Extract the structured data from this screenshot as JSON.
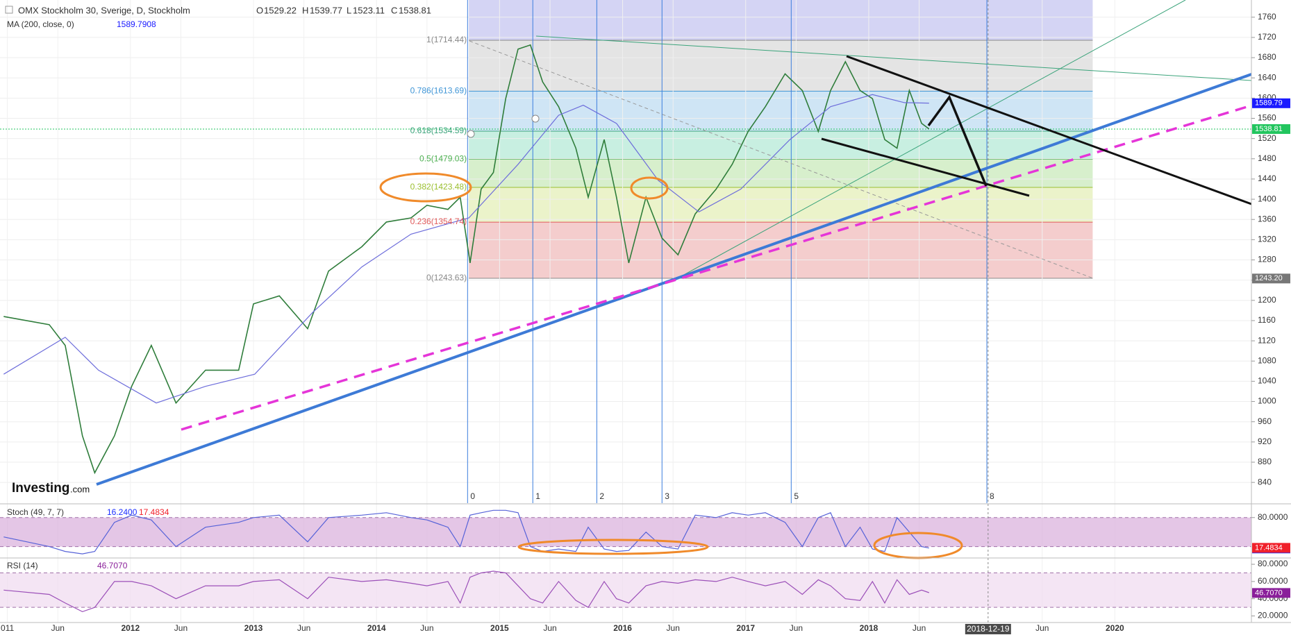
{
  "chart_data": [
    {
      "type": "line",
      "title": "OMX Stockholm 30, Sverige, D, Stockholm",
      "ohlc_labels": [
        "O",
        "H",
        "L",
        "C"
      ],
      "ohlc": [
        1529.22,
        1539.77,
        1523.11,
        1538.81
      ],
      "logo": "Investing",
      "logo_suffix": ".com",
      "xlim": [
        2010.94,
        2021.11
      ],
      "xticks": [
        {
          "value": 2011,
          "label": "011"
        },
        {
          "value": 2011.41,
          "label": "Jun"
        },
        2012,
        {
          "value": 2012.41,
          "label": "Jun"
        },
        2013,
        {
          "value": 2013.41,
          "label": "Jun"
        },
        2014,
        {
          "value": 2014.41,
          "label": "Jun"
        },
        2015,
        {
          "value": 2015.41,
          "label": "Jun"
        },
        2016,
        {
          "value": 2016.41,
          "label": "Jun"
        },
        2017,
        {
          "value": 2017.41,
          "label": "Jun"
        },
        2018,
        {
          "value": 2018.41,
          "label": "Jun"
        },
        {
          "value": 2019.41,
          "label": "Jun"
        },
        2020
      ],
      "crosshair_x": {
        "value": 2018.97,
        "label": "2018-12-19"
      },
      "ylim": [
        799,
        1794
      ],
      "yticks": [
        840,
        880,
        920,
        960,
        1000,
        1040,
        1080,
        1120,
        1160,
        1200,
        1240,
        1280,
        1320,
        1360,
        1400,
        1440,
        1480,
        1520,
        1560,
        1600,
        1640,
        1680,
        1720,
        1760
      ],
      "grid": true,
      "last_color": "#22c55e",
      "x": [
        2010.97,
        2011.34,
        2011.47,
        2011.61,
        2011.71,
        2011.87,
        2012.01,
        2012.17,
        2012.37,
        2012.61,
        2012.88,
        2013.0,
        2013.21,
        2013.44,
        2013.61,
        2013.88,
        2014.08,
        2014.28,
        2014.41,
        2014.58,
        2014.68,
        2014.76,
        2014.85,
        2014.95,
        2015.05,
        2015.15,
        2015.25,
        2015.35,
        2015.48,
        2015.62,
        2015.72,
        2015.85,
        2015.95,
        2016.05,
        2016.19,
        2016.32,
        2016.45,
        2016.59,
        2016.76,
        2016.89,
        2017.02,
        2017.16,
        2017.32,
        2017.46,
        2017.59,
        2017.69,
        2017.81,
        2017.93,
        2018.03,
        2018.13,
        2018.23,
        2018.33,
        2018.43,
        2018.49
      ],
      "series": [
        {
          "name": "OMX Stockholm 30, Sverige, D, Stockholm",
          "color": "#2f7d3b",
          "values": [
            1168,
            1152,
            1111,
            932,
            859,
            932,
            1030,
            1111,
            997,
            1062,
            1062,
            1193,
            1209,
            1144,
            1258,
            1306,
            1355,
            1363,
            1388,
            1380,
            1404,
            1274,
            1420,
            1453,
            1599,
            1697,
            1705,
            1632,
            1583,
            1501,
            1404,
            1518,
            1404,
            1274,
            1404,
            1323,
            1290,
            1371,
            1420,
            1469,
            1534,
            1583,
            1648,
            1615,
            1534,
            1615,
            1672,
            1615,
            1599,
            1518,
            1501,
            1615,
            1550,
            1539
          ]
        },
        {
          "name": "MA (200, close, 0)",
          "color": "#6d6ddb",
          "last": 1589.7908,
          "x": [
            2010.97,
            2011.47,
            2011.74,
            2012.21,
            2012.61,
            2013.01,
            2013.48,
            2013.88,
            2014.28,
            2014.75,
            2015.15,
            2015.48,
            2015.68,
            2015.95,
            2016.29,
            2016.62,
            2016.96,
            2017.36,
            2017.69,
            2018.03,
            2018.29,
            2018.49
          ],
          "values": [
            1054,
            1127,
            1062,
            997,
            1030,
            1054,
            1176,
            1266,
            1331,
            1363,
            1469,
            1566,
            1586,
            1550,
            1437,
            1375,
            1420,
            1518,
            1583,
            1607,
            1591,
            1590
          ]
        }
      ],
      "badges": [
        {
          "value": 1589.79,
          "color": "#1a1aff"
        },
        {
          "value": 1538.81,
          "color": "#22c55e"
        },
        {
          "value": 1243.2,
          "label": "1243.20",
          "color": "#777777"
        }
      ],
      "fib": {
        "x": [
          2014.75,
          2019.82
        ],
        "top_color": "#d4d4f4",
        "levels": [
          {
            "label": "1(1714.44)",
            "value": 1714.44,
            "color": "#e4e4e4",
            "text_color": "#888888"
          },
          {
            "label": "0.786(1613.69)",
            "value": 1613.69,
            "color": "#cfe5f5",
            "text_color": "#3f95d6"
          },
          {
            "label": "0.618(1534.59)",
            "value": 1534.59,
            "color": "#c8efe1",
            "text_color": "#3aa37a"
          },
          {
            "label": "0.5(1479.03)",
            "value": 1479.03,
            "color": "#d7efcc",
            "text_color": "#4caf50"
          },
          {
            "label": "0.382(1423.48)",
            "value": 1423.48,
            "color": "#ebf3ca",
            "text_color": "#9bbf2f"
          },
          {
            "label": "0.236(1354.74)",
            "value": 1354.74,
            "color": "#f4cdcd",
            "text_color": "#e05a5a"
          },
          {
            "label": "0(1243.63)",
            "value": 1243.63,
            "text_color": "#888888"
          }
        ]
      },
      "cycles": {
        "labels": [
          0,
          1,
          2,
          3,
          5,
          8
        ],
        "x": [
          2014.74,
          2015.27,
          2015.79,
          2016.32,
          2017.37,
          2018.96
        ],
        "color": "#3b7ddd"
      }
    },
    {
      "type": "line",
      "x": [
        2010.97,
        2011.34,
        2011.47,
        2011.61,
        2011.71,
        2011.87,
        2012.01,
        2012.17,
        2012.37,
        2012.61,
        2012.88,
        2013.0,
        2013.21,
        2013.44,
        2013.61,
        2013.88,
        2014.08,
        2014.28,
        2014.41,
        2014.58,
        2014.68,
        2014.76,
        2014.85,
        2014.95,
        2015.05,
        2015.15,
        2015.25,
        2015.35,
        2015.48,
        2015.62,
        2015.72,
        2015.85,
        2015.95,
        2016.05,
        2016.19,
        2016.32,
        2016.45,
        2016.59,
        2016.76,
        2016.89,
        2017.02,
        2017.16,
        2017.32,
        2017.46,
        2017.59,
        2017.69,
        2017.81,
        2017.93,
        2018.03,
        2018.13,
        2018.23,
        2018.33,
        2018.43,
        2018.49
      ],
      "ylim": [
        -2,
        104
      ],
      "yticks": [
        {
          "value": 80,
          "label": "80.0000"
        }
      ],
      "band": {
        "from": 20,
        "to": 80,
        "color": "#dbb3dd"
      },
      "series": [
        {
          "name": "Stoch (49, 7, 7)",
          "color": "#5662d8",
          "values": [
            40,
            20,
            10,
            5,
            10,
            70,
            85,
            75,
            20,
            60,
            70,
            80,
            85,
            30,
            80,
            85,
            90,
            80,
            75,
            60,
            20,
            85,
            90,
            95,
            95,
            90,
            20,
            10,
            15,
            10,
            60,
            15,
            10,
            12,
            50,
            20,
            15,
            85,
            80,
            90,
            85,
            90,
            70,
            20,
            80,
            90,
            20,
            60,
            15,
            10,
            80,
            50,
            20,
            17
          ]
        }
      ],
      "badges": [
        {
          "value": 16.24,
          "label": "16.2400",
          "color": "#1a2dff"
        },
        {
          "value": 17.4834,
          "color": "#f0202a"
        }
      ]
    },
    {
      "type": "line",
      "x": [
        2010.97,
        2011.34,
        2011.47,
        2011.61,
        2011.71,
        2011.87,
        2012.01,
        2012.17,
        2012.37,
        2012.61,
        2012.88,
        2013.0,
        2013.21,
        2013.44,
        2013.61,
        2013.88,
        2014.08,
        2014.28,
        2014.41,
        2014.58,
        2014.68,
        2014.76,
        2014.85,
        2014.95,
        2015.05,
        2015.15,
        2015.25,
        2015.35,
        2015.48,
        2015.62,
        2015.72,
        2015.85,
        2015.95,
        2016.05,
        2016.19,
        2016.32,
        2016.45,
        2016.59,
        2016.76,
        2016.89,
        2017.02,
        2017.16,
        2017.32,
        2017.46,
        2017.59,
        2017.69,
        2017.81,
        2017.93,
        2018.03,
        2018.13,
        2018.23,
        2018.33,
        2018.43,
        2018.49
      ],
      "ylim": [
        12.4,
        85.7
      ],
      "yticks": [
        {
          "value": 80,
          "label": "80.0000"
        },
        {
          "value": 60,
          "label": "60.0000"
        },
        {
          "value": 40,
          "label": "40.0000"
        },
        {
          "value": 20,
          "label": "20.0000"
        }
      ],
      "band": {
        "from": 30,
        "to": 70,
        "color": "#f0dcf0"
      },
      "series": [
        {
          "name": "RSI (14)",
          "color": "#9b4fb8",
          "values": [
            50,
            45,
            35,
            25,
            30,
            60,
            60,
            55,
            40,
            55,
            55,
            60,
            62,
            40,
            65,
            60,
            62,
            58,
            55,
            60,
            35,
            65,
            70,
            72,
            70,
            55,
            40,
            35,
            60,
            38,
            30,
            60,
            40,
            35,
            55,
            60,
            58,
            62,
            60,
            65,
            60,
            55,
            60,
            45,
            62,
            55,
            40,
            38,
            60,
            35,
            62,
            45,
            50,
            47
          ]
        }
      ],
      "badges": [
        {
          "value": 46.707,
          "label": "46.7070",
          "color": "#8a1f9a"
        }
      ]
    }
  ]
}
